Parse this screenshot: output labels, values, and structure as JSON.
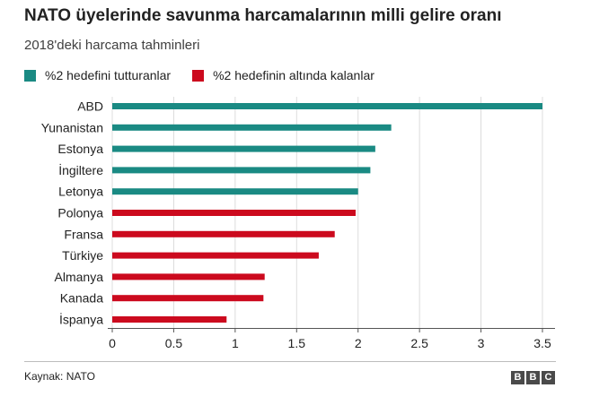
{
  "title": "NATO üyelerinde savunma harcamalarının milli gelire oranı",
  "subtitle": "2018'deki harcama tahminleri",
  "legend": [
    {
      "label": "%2 hedefini tutturanlar",
      "color": "#1a8a83"
    },
    {
      "label": "%2 hedefinin altında kalanlar",
      "color": "#cc0a1e"
    }
  ],
  "source": "Kaynak: NATO",
  "logo": [
    "B",
    "B",
    "C"
  ],
  "chart_data": {
    "type": "bar",
    "orientation": "horizontal",
    "categories": [
      "ABD",
      "Yunanistan",
      "Estonya",
      "İngiltere",
      "Letonya",
      "Polonya",
      "Fransa",
      "Türkiye",
      "Almanya",
      "Kanada",
      "İspanya"
    ],
    "values": [
      3.5,
      2.27,
      2.14,
      2.1,
      2.0,
      1.98,
      1.81,
      1.68,
      1.24,
      1.23,
      0.93
    ],
    "groups": [
      0,
      0,
      0,
      0,
      0,
      1,
      1,
      1,
      1,
      1,
      1
    ],
    "xlim": [
      0,
      3.5
    ],
    "xticks": [
      "0",
      "0.5",
      "1",
      "1.5",
      "2",
      "2.5",
      "3",
      "3.5"
    ],
    "grid": true
  }
}
